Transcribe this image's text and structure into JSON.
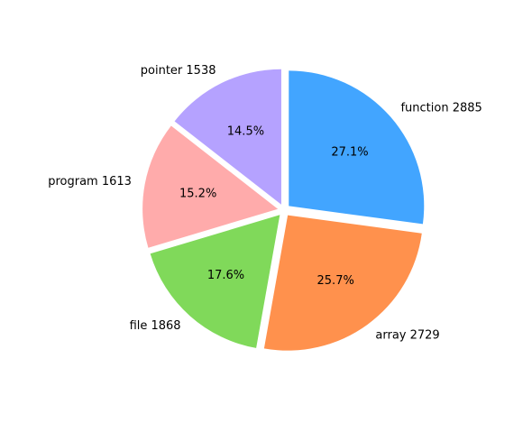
{
  "chart_data": {
    "type": "pie",
    "title": "",
    "slices": [
      {
        "category": "function",
        "value": 2885,
        "percent_label": "27.1%",
        "label": "function 2885",
        "color": "#42A5FF"
      },
      {
        "category": "array",
        "value": 2729,
        "percent_label": "25.7%",
        "label": "array 2729",
        "color": "#FF914D"
      },
      {
        "category": "file",
        "value": 1868,
        "percent_label": "17.6%",
        "label": "file 1868",
        "color": "#80D95A"
      },
      {
        "category": "program",
        "value": 1613,
        "percent_label": "15.2%",
        "label": "program 1613",
        "color": "#FFABAB"
      },
      {
        "category": "pointer",
        "value": 1538,
        "percent_label": "14.5%",
        "label": "pointer 1538",
        "color": "#B5A2FF"
      }
    ],
    "start_angle_deg": 90,
    "direction": "clockwise",
    "exploded": true,
    "legend": "none",
    "grid": false
  }
}
